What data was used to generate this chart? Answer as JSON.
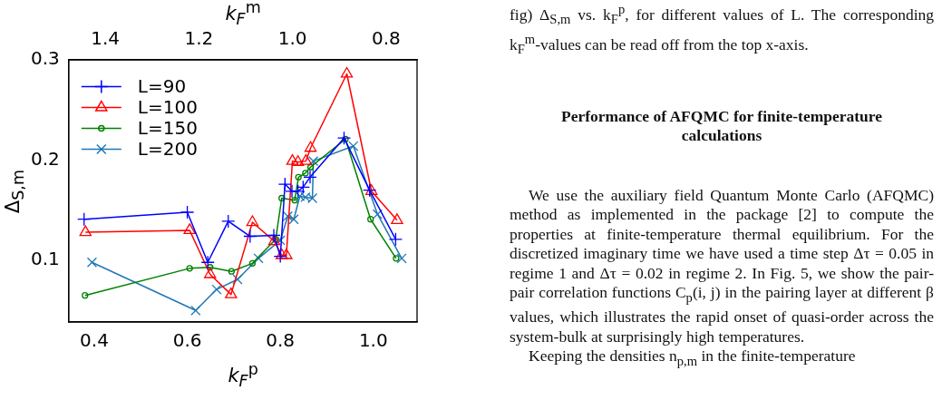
{
  "chart_data": {
    "type": "line",
    "xlabel": "k$_{F}$$^{p}$",
    "ylabel": "Δ$_{S,m}$",
    "x2label": "k$_{F}$$^{m}$",
    "xlim": [
      0.345,
      1.094
    ],
    "xticks": [
      0.4,
      0.6,
      0.8,
      {
        "value": 1,
        "label": "1.0"
      }
    ],
    "x2lim": [
      1.478,
      0.734
    ],
    "x2ticks": [
      1.4,
      1.2,
      {
        "value": 1,
        "label": "1.0"
      },
      0.8
    ],
    "ylim": [
      0.0385,
      0.3
    ],
    "yticks": [
      0.1,
      0.2,
      0.3
    ],
    "legend": "top left",
    "grid": false,
    "line_style": "solid",
    "series": [
      {
        "name": "L=90",
        "color": "#0000ff",
        "marker": "cross",
        "x": [
          0.378,
          0.6,
          0.644,
          0.688,
          0.735,
          0.786,
          0.8,
          0.81,
          0.825,
          0.838,
          0.849,
          0.864,
          0.937,
          0.992,
          1.048
        ],
        "values": [
          0.141,
          0.148,
          0.098,
          0.139,
          0.124,
          0.125,
          0.104,
          0.176,
          0.169,
          0.169,
          0.173,
          0.183,
          0.222,
          0.17,
          0.121
        ]
      },
      {
        "name": "L=100",
        "color": "#ff0000",
        "marker": "triangle",
        "x": [
          0.381,
          0.605,
          0.649,
          0.694,
          0.74,
          0.787,
          0.803,
          0.813,
          0.826,
          0.838,
          0.855,
          0.865,
          0.943,
          0.996,
          1.051
        ],
        "values": [
          0.128,
          0.13,
          0.086,
          0.066,
          0.138,
          0.119,
          0.105,
          0.105,
          0.199,
          0.198,
          0.199,
          0.212,
          0.286,
          0.169,
          0.14
        ]
      },
      {
        "name": "L=150",
        "color": "#008000",
        "marker": "circle",
        "x": [
          0.38,
          0.605,
          0.649,
          0.695,
          0.74,
          0.79,
          0.803,
          0.831,
          0.839,
          0.854,
          0.865,
          0.94,
          0.994,
          1.049
        ],
        "values": [
          0.065,
          0.092,
          0.093,
          0.089,
          0.097,
          0.121,
          0.162,
          0.16,
          0.183,
          0.187,
          0.193,
          0.221,
          0.141,
          0.102
        ]
      },
      {
        "name": "L=200",
        "color": "#1f77b4",
        "marker": "x",
        "x": [
          0.395,
          0.618,
          0.663,
          0.708,
          0.753,
          0.8,
          0.816,
          0.829,
          0.842,
          0.854,
          0.869,
          0.871,
          0.957,
          1.009,
          1.061
        ],
        "values": [
          0.098,
          0.05,
          0.071,
          0.081,
          0.102,
          0.12,
          0.144,
          0.141,
          0.164,
          0.163,
          0.162,
          0.199,
          0.214,
          0.146,
          0.102
        ]
      }
    ],
    "annotations": [
      "fig) Δ$_{S,m}$ vs. k$_{F}$$^{p}$, for different values of L. The corresponding k$_{F}$$^{m}$-values can be read off from the top x-axis.",
      "Performance of AFQMC for finite-temperature calculations",
      "We use the auxiliary field Quantum Monte Carlo (AFQMC) method as implemented in the package [2] to compute the properties at finite-temperature thermal equilibrium. For the discretized imaginary time we have used a time step Δτ = 0.05 in regime 1 and Δτ = 0.02 in regime 2. In Fig. 5, we show the pair-pair correlation functions C$_{p}$(i, j) in the pairing layer at different β values, which illustrates the rapid onset of quasi-order across the system-bulk at surprisingly high temperatures.",
      "Keeping the densities n$_{p,m}$ in the finite-temperature"
    ]
  }
}
